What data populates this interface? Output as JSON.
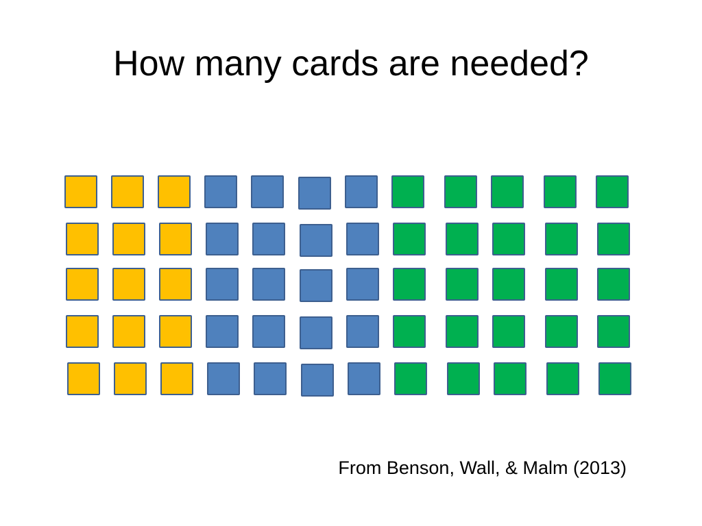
{
  "slide": {
    "title": "How many cards are needed?",
    "source": "From Benson, Wall, & Malm (2013)"
  },
  "cards": {
    "rows": 5,
    "groups": [
      {
        "name": "yellow",
        "color": "#FFC000",
        "count_per_row": 3
      },
      {
        "name": "blue",
        "color": "#4F81BD",
        "count_per_row": 4
      },
      {
        "name": "green",
        "color": "#00B050",
        "count_per_row": 5
      }
    ],
    "border_color": "#3D5F8F"
  }
}
